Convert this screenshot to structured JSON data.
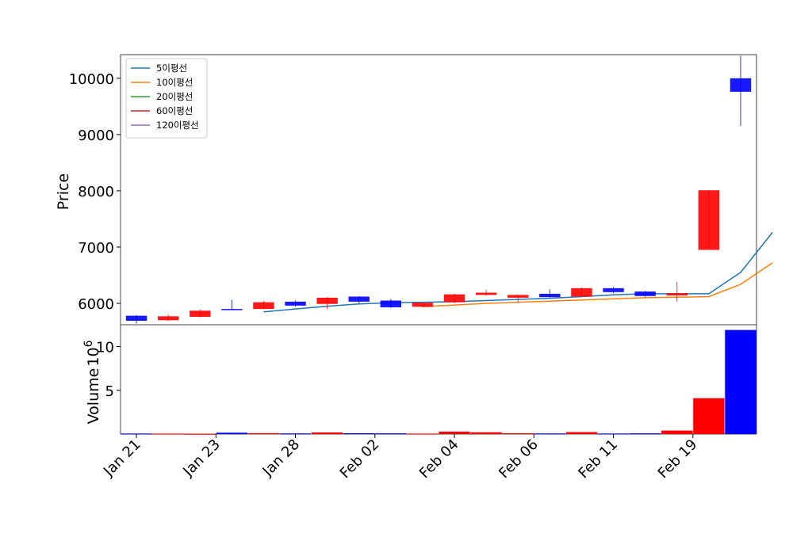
{
  "chart_data": {
    "type": "candlestick",
    "price_ylabel": "Price",
    "volume_ylabel": "Volume",
    "volume_scale_label": "10",
    "volume_scale_exponent": "6",
    "price_ylim": [
      5620,
      10420
    ],
    "price_yticks": [
      6000,
      7000,
      8000,
      9000,
      10000
    ],
    "volume_ylim": [
      0,
      12.5
    ],
    "volume_yticks": [
      5,
      10
    ],
    "xtick_labels": [
      "Jan 21",
      "Jan 23",
      "Jan 28",
      "Feb 02",
      "Feb 04",
      "Feb 06",
      "Feb 11",
      "Feb 19"
    ],
    "xtick_positions": [
      0.5,
      3,
      5.5,
      8,
      10.5,
      13,
      15.5,
      18
    ],
    "up_color": "#ff0000",
    "down_color": "#0000ff",
    "candles": [
      {
        "o": 5780,
        "h": 5790,
        "l": 5640,
        "c": 5690
      },
      {
        "o": 5700,
        "h": 5800,
        "l": 5690,
        "c": 5770
      },
      {
        "o": 5760,
        "h": 5890,
        "l": 5750,
        "c": 5870
      },
      {
        "o": 5900,
        "h": 6060,
        "l": 5880,
        "c": 5890
      },
      {
        "o": 5900,
        "h": 6040,
        "l": 5890,
        "c": 6020
      },
      {
        "o": 6030,
        "h": 6050,
        "l": 5940,
        "c": 5960
      },
      {
        "o": 5990,
        "h": 6110,
        "l": 5900,
        "c": 6100
      },
      {
        "o": 6120,
        "h": 6130,
        "l": 6000,
        "c": 6030
      },
      {
        "o": 6050,
        "h": 6080,
        "l": 5920,
        "c": 5930
      },
      {
        "o": 5940,
        "h": 6020,
        "l": 5930,
        "c": 6010
      },
      {
        "o": 6020,
        "h": 6170,
        "l": 6000,
        "c": 6160
      },
      {
        "o": 6150,
        "h": 6240,
        "l": 6140,
        "c": 6190
      },
      {
        "o": 6100,
        "h": 6160,
        "l": 6020,
        "c": 6150
      },
      {
        "o": 6170,
        "h": 6250,
        "l": 6100,
        "c": 6110
      },
      {
        "o": 6120,
        "h": 6280,
        "l": 6110,
        "c": 6270
      },
      {
        "o": 6270,
        "h": 6290,
        "l": 6180,
        "c": 6200
      },
      {
        "o": 6210,
        "h": 6220,
        "l": 6110,
        "c": 6130
      },
      {
        "o": 6140,
        "h": 6380,
        "l": 6030,
        "c": 6180
      },
      {
        "o": 6950,
        "h": 8010,
        "l": 6950,
        "c": 8010
      },
      {
        "o": 10000,
        "h": 10400,
        "l": 9150,
        "c": 9760
      }
    ],
    "volume": [
      0.06,
      0.05,
      0.04,
      0.15,
      0.1,
      0.07,
      0.18,
      0.09,
      0.08,
      0.05,
      0.28,
      0.2,
      0.09,
      0.07,
      0.22,
      0.06,
      0.08,
      0.4,
      4.1,
      11.9
    ],
    "series": [
      {
        "name": "5이평선",
        "color": "#1f77b4",
        "start": 4,
        "values": [
          5850,
          5900,
          5950,
          5990,
          6010,
          6020,
          6030,
          6050,
          6070,
          6090,
          6120,
          6150,
          6170,
          6170,
          6170,
          6550,
          7260
        ]
      },
      {
        "name": "10이평선",
        "color": "#ff7f0e",
        "start": 9,
        "values": [
          5940,
          5970,
          6000,
          6020,
          6040,
          6060,
          6080,
          6100,
          6110,
          6120,
          6340,
          6720
        ]
      },
      {
        "name": "20이평선",
        "color": "#2ca02c",
        "start": null,
        "values": []
      },
      {
        "name": "60이평선",
        "color": "#d62728",
        "start": null,
        "values": []
      },
      {
        "name": "120이평선",
        "color": "#9467bd",
        "start": null,
        "values": []
      }
    ]
  }
}
